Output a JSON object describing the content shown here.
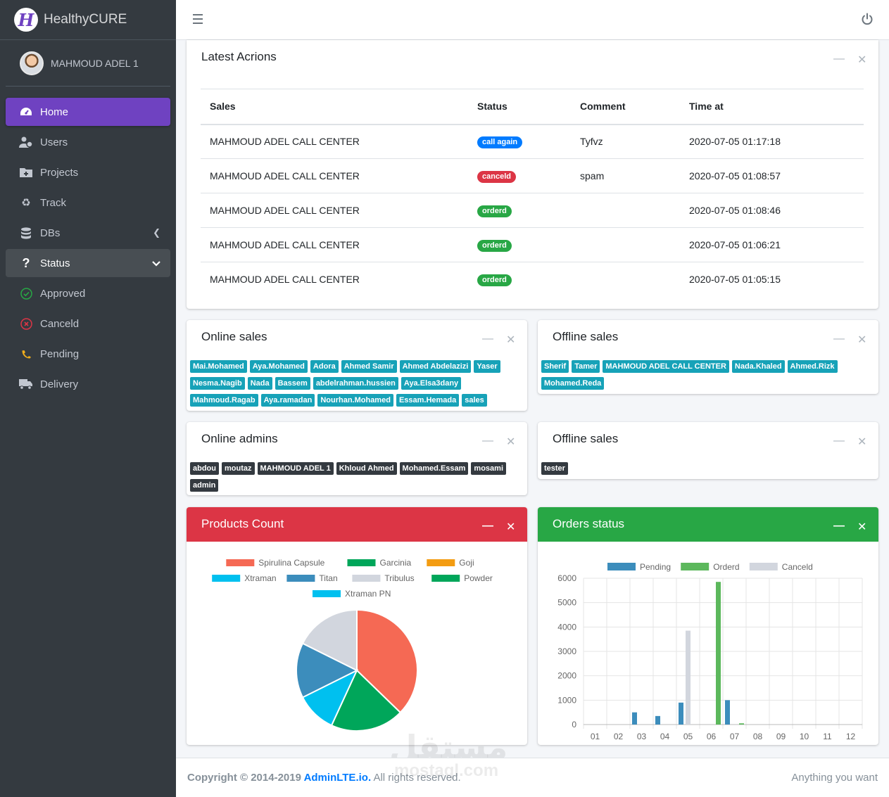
{
  "brand": {
    "name": "HealthyCURE",
    "logo_letter": "H"
  },
  "user": {
    "name": "MAHMOUD ADEL 1"
  },
  "sidebar": {
    "items": [
      {
        "label": "Home",
        "icon": "dashboard-icon"
      },
      {
        "label": "Users",
        "icon": "users-icon"
      },
      {
        "label": "Projects",
        "icon": "folder-plus-icon"
      },
      {
        "label": "Track",
        "icon": "recycle-icon"
      },
      {
        "label": "DBs",
        "icon": "database-icon"
      },
      {
        "label": "Status",
        "icon": "question-icon"
      },
      {
        "label": "Approved",
        "icon": "check-circle-icon"
      },
      {
        "label": "Canceld",
        "icon": "x-circle-icon"
      },
      {
        "label": "Pending",
        "icon": "phone-icon"
      },
      {
        "label": "Delivery",
        "icon": "truck-icon"
      }
    ]
  },
  "latest": {
    "title": "Latest Acrions",
    "columns": [
      "Sales",
      "Status",
      "Comment",
      "Time at"
    ],
    "rows": [
      {
        "sales": "MAHMOUD ADEL CALL CENTER",
        "status": "call again",
        "status_color": "#007bff",
        "comment": "Tyfvz",
        "time": "2020-07-05 01:17:18"
      },
      {
        "sales": "MAHMOUD ADEL CALL CENTER",
        "status": "canceld",
        "status_color": "#dc3545",
        "comment": "spam",
        "time": "2020-07-05 01:08:57"
      },
      {
        "sales": "MAHMOUD ADEL CALL CENTER",
        "status": "orderd",
        "status_color": "#28a745",
        "comment": "",
        "time": "2020-07-05 01:08:46"
      },
      {
        "sales": "MAHMOUD ADEL CALL CENTER",
        "status": "orderd",
        "status_color": "#28a745",
        "comment": "",
        "time": "2020-07-05 01:06:21"
      },
      {
        "sales": "MAHMOUD ADEL CALL CENTER",
        "status": "orderd",
        "status_color": "#28a745",
        "comment": "",
        "time": "2020-07-05 01:05:15"
      }
    ]
  },
  "online_sales": {
    "title": "Online sales",
    "tags": [
      "Mai.Mohamed",
      "Aya.Mohamed",
      "Adora",
      "Ahmed Samir",
      "Ahmed Abdelazizi",
      "Yaser",
      "Nesma.Nagib",
      "Nada",
      "Bassem",
      "abdelrahman.hussien",
      "Aya.Elsa3dany",
      "Mahmoud.Ragab",
      "Aya.ramadan",
      "Nourhan.Mohamed",
      "Essam.Hemada",
      "sales"
    ]
  },
  "offline_sales": {
    "title": "Offline sales",
    "tags": [
      "Sherif",
      "Tamer",
      "MAHMOUD ADEL CALL CENTER",
      "Nada.Khaled",
      "Ahmed.Rizk",
      "Mohamed.Reda"
    ]
  },
  "online_admins": {
    "title": "Online admins",
    "tags": [
      "abdou",
      "moutaz",
      "MAHMOUD ADEL 1",
      "Khloud Ahmed",
      "Mohamed.Essam",
      "mosami",
      "admin"
    ]
  },
  "offline_admins": {
    "title": "Offline sales",
    "tags": [
      "tester"
    ]
  },
  "products": {
    "title": "Products Count",
    "header_color": "#dc3545"
  },
  "orders": {
    "title": "Orders status",
    "header_color": "#28a745"
  },
  "chart_data": [
    {
      "type": "pie",
      "title": "",
      "categories": [
        "Spirulina Capsule",
        "Garcinia",
        "Goji",
        "Xtraman",
        "Titan",
        "Tribulus",
        "Powder",
        "Xtraman PN"
      ],
      "colors": [
        "#f56954",
        "#00a65a",
        "#f39c12",
        "#00c0ef",
        "#3c8dbc",
        "#d2d6de",
        "#00a65a",
        "#00c0ef"
      ],
      "values": [
        38,
        20,
        0,
        11,
        15,
        18,
        0,
        0
      ]
    },
    {
      "type": "bar",
      "title": "",
      "categories": [
        "01",
        "02",
        "03",
        "04",
        "05",
        "06",
        "07",
        "08",
        "09",
        "10",
        "11",
        "12"
      ],
      "series": [
        {
          "name": "Pending",
          "color": "#3c8dbc",
          "values": [
            0,
            0,
            500,
            350,
            900,
            0,
            1000,
            0,
            0,
            0,
            0,
            0
          ]
        },
        {
          "name": "Orderd",
          "color": "#5cb85c",
          "values": [
            0,
            0,
            0,
            0,
            0,
            5850,
            50,
            0,
            0,
            0,
            0,
            0
          ]
        },
        {
          "name": "Canceld",
          "color": "#d2d6de",
          "values": [
            0,
            0,
            0,
            0,
            3850,
            0,
            0,
            0,
            0,
            0,
            0,
            0
          ]
        }
      ],
      "ylim": [
        0,
        6000
      ],
      "yticks": [
        0,
        1000,
        2000,
        3000,
        4000,
        5000,
        6000
      ],
      "grid": true,
      "legend": "top"
    }
  ],
  "footer": {
    "copyright_prefix": "Copyright © 2014-2019 ",
    "link": "AdminLTE.io.",
    "rest": " All rights reserved.",
    "right": "Anything you want"
  },
  "watermark": {
    "main": "مستقل",
    "sub": "mostaql.com"
  }
}
